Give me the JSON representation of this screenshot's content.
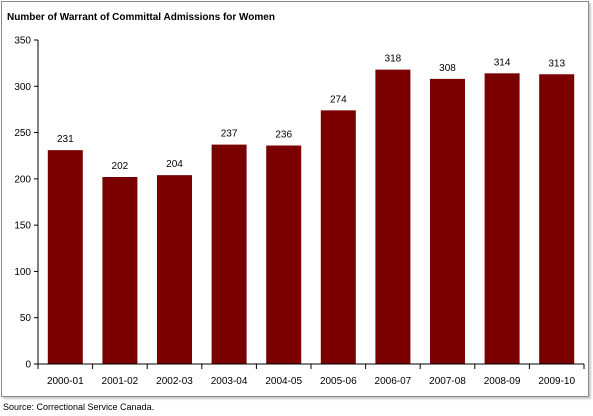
{
  "chart_data": {
    "type": "bar",
    "title": "Number of Warrant of Committal Admissions for Women",
    "categories": [
      "2000-01",
      "2001-02",
      "2002-03",
      "2003-04",
      "2004-05",
      "2005-06",
      "2006-07",
      "2007-08",
      "2008-09",
      "2009-10"
    ],
    "values": [
      231,
      202,
      204,
      237,
      236,
      274,
      318,
      308,
      314,
      313
    ],
    "data_labels": [
      "231",
      "202",
      "204",
      "237",
      "236",
      "274",
      "318",
      "308",
      "314",
      "313"
    ],
    "xlabel": "",
    "ylabel": "",
    "ylim": [
      0,
      350
    ],
    "yticks": [
      0,
      50,
      100,
      150,
      200,
      250,
      300,
      350
    ],
    "ytick_labels": [
      "0",
      "50",
      "100",
      "150",
      "200",
      "250",
      "300",
      "350"
    ],
    "grid": false,
    "bar_color": "#7a0000"
  },
  "source": "Source:  Correctional Service Canada."
}
